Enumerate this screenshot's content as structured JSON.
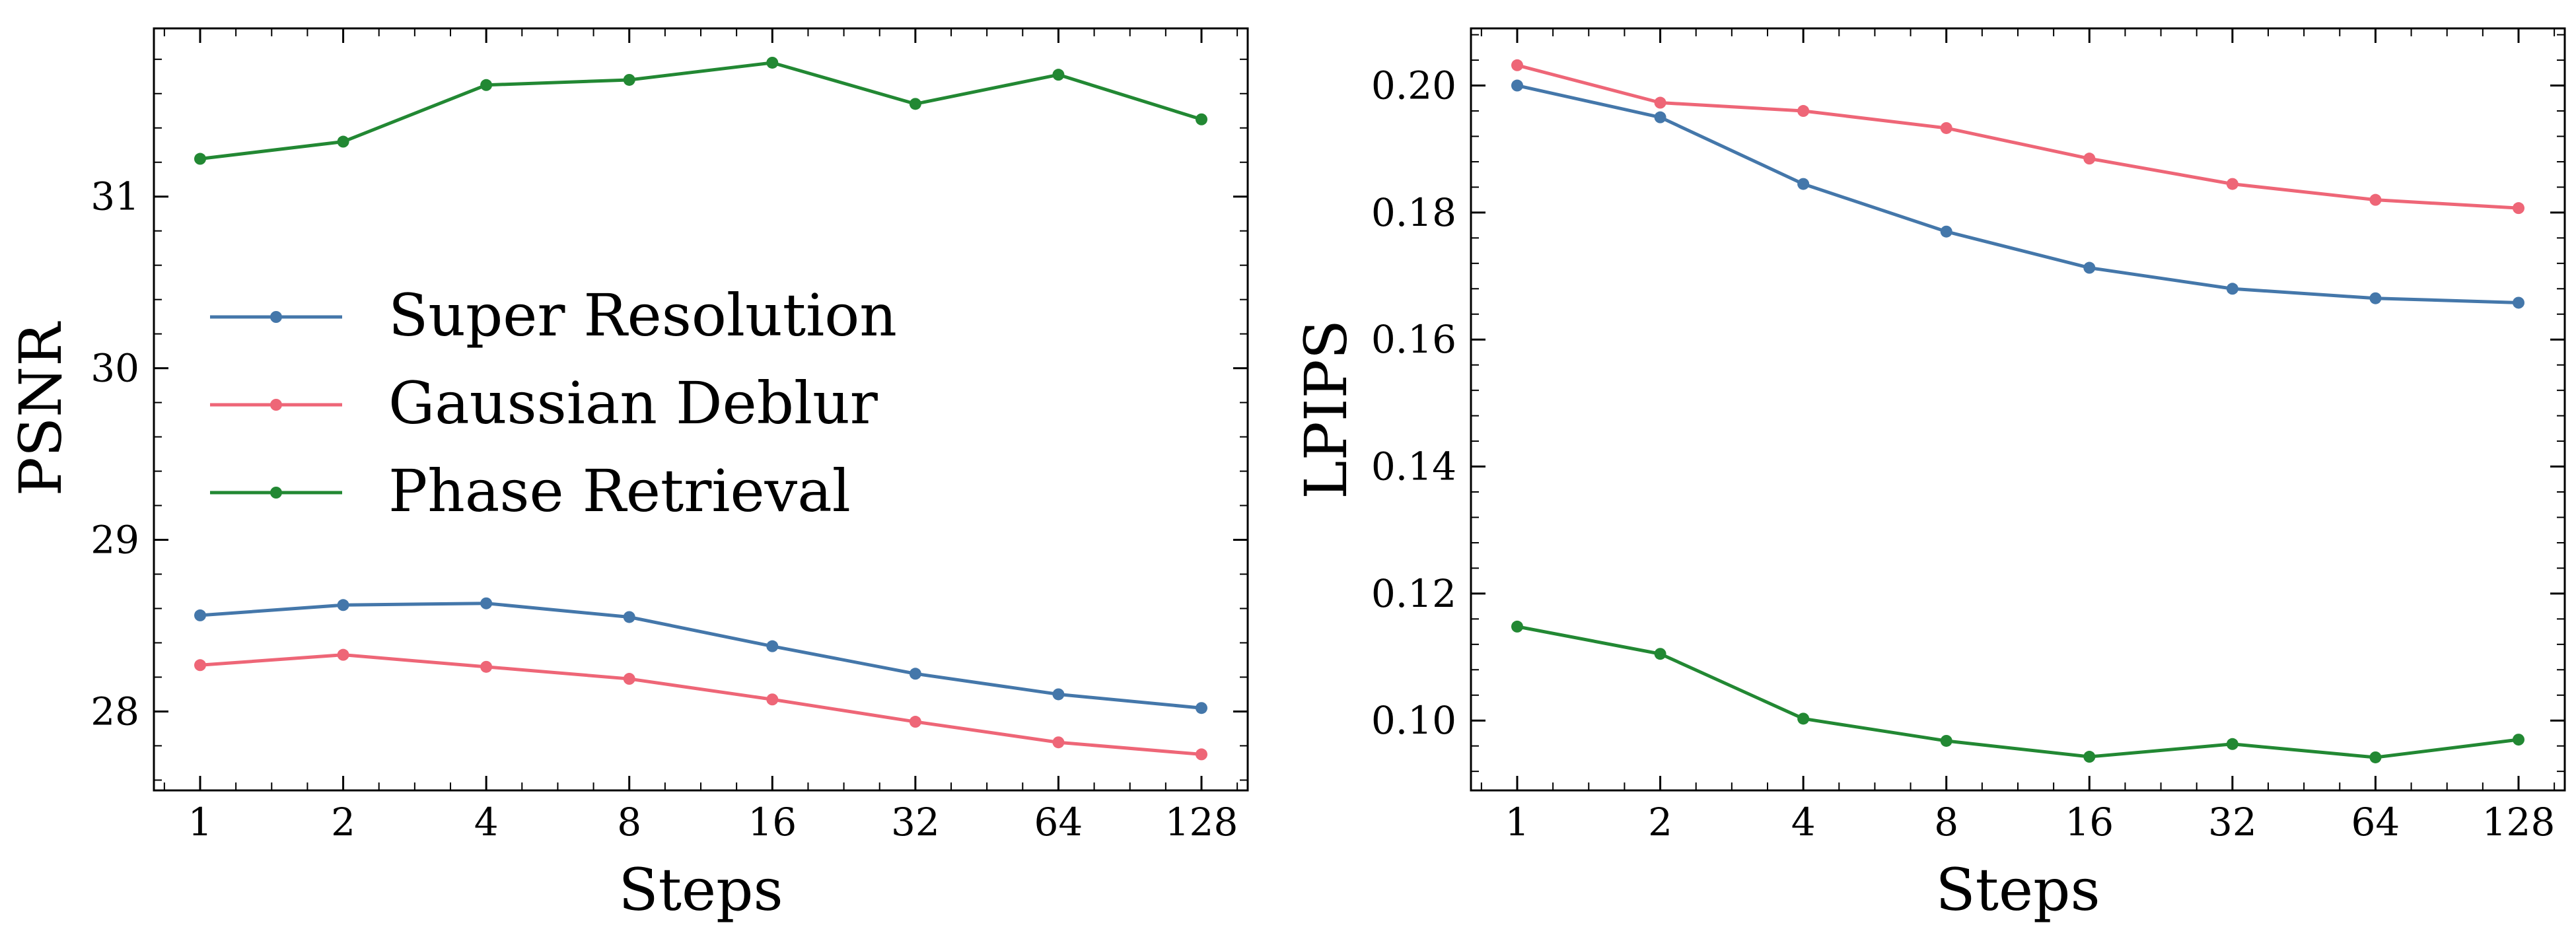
{
  "colors": {
    "super_resolution": "#4477aa",
    "gaussian_deblur": "#ee6677",
    "phase_retrieval": "#228833"
  },
  "chart_data": [
    {
      "type": "line",
      "xlabel": "Steps",
      "ylabel": "PSNR",
      "x": [
        1,
        2,
        4,
        8,
        16,
        32,
        64,
        128
      ],
      "xticklabels": [
        "1",
        "2",
        "4",
        "8",
        "16",
        "32",
        "64",
        "128"
      ],
      "yticks": [
        28,
        29,
        30,
        31
      ],
      "yticklabels": [
        "28",
        "29",
        "30",
        "31"
      ],
      "ylim": [
        27.54,
        31.98
      ],
      "legend_location": "center-left",
      "series": [
        {
          "name": "Super Resolution",
          "color_key": "super_resolution",
          "values": [
            28.56,
            28.62,
            28.63,
            28.55,
            28.38,
            28.22,
            28.1,
            28.02
          ]
        },
        {
          "name": "Gaussian Deblur",
          "color_key": "gaussian_deblur",
          "values": [
            28.27,
            28.33,
            28.26,
            28.19,
            28.07,
            27.94,
            27.82,
            27.75
          ]
        },
        {
          "name": "Phase Retrieval",
          "color_key": "phase_retrieval",
          "values": [
            31.22,
            31.32,
            31.65,
            31.68,
            31.78,
            31.54,
            31.71,
            31.45
          ]
        }
      ]
    },
    {
      "type": "line",
      "xlabel": "Steps",
      "ylabel": "LPIPS",
      "x": [
        1,
        2,
        4,
        8,
        16,
        32,
        64,
        128
      ],
      "xticklabels": [
        "1",
        "2",
        "4",
        "8",
        "16",
        "32",
        "64",
        "128"
      ],
      "yticks": [
        0.1,
        0.12,
        0.14,
        0.16,
        0.18,
        0.2
      ],
      "yticklabels": [
        "0.10",
        "0.12",
        "0.14",
        "0.16",
        "0.18",
        "0.20"
      ],
      "ylim": [
        0.089,
        0.209
      ],
      "legend_location": "none",
      "series": [
        {
          "name": "Super Resolution",
          "color_key": "super_resolution",
          "values": [
            0.2,
            0.195,
            0.1845,
            0.177,
            0.1713,
            0.168,
            0.1665,
            0.1658
          ]
        },
        {
          "name": "Gaussian Deblur",
          "color_key": "gaussian_deblur",
          "values": [
            0.2032,
            0.1973,
            0.196,
            0.1933,
            0.1885,
            0.1845,
            0.182,
            0.1807
          ]
        },
        {
          "name": "Phase Retrieval",
          "color_key": "phase_retrieval",
          "values": [
            0.1148,
            0.1105,
            0.1003,
            0.0968,
            0.0943,
            0.0963,
            0.0942,
            0.097
          ]
        }
      ]
    }
  ]
}
